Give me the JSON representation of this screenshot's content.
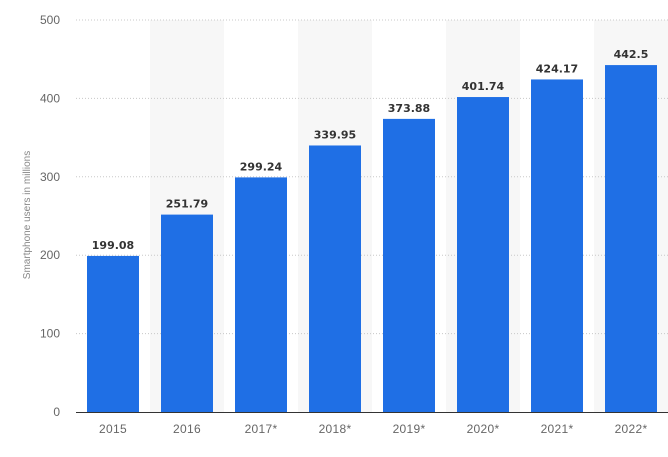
{
  "chart_data": {
    "type": "bar",
    "ylabel": "Smartphone users in millions",
    "xlabel": "",
    "ylim": [
      0,
      500
    ],
    "yticks": [
      0,
      100,
      200,
      300,
      400,
      500
    ],
    "categories": [
      "2015",
      "2016",
      "2017*",
      "2018*",
      "2019*",
      "2020*",
      "2021*",
      "2022*"
    ],
    "values": [
      199.08,
      251.79,
      299.24,
      339.95,
      373.88,
      401.74,
      424.17,
      442.5
    ],
    "value_labels": [
      "199.08",
      "251.79",
      "299.24",
      "339.95",
      "373.88",
      "401.74",
      "424.17",
      "442.5"
    ],
    "grid": true,
    "alternating_column_bands": true,
    "colors": {
      "bar": "#1f6fe5",
      "band": "#f7f7f7",
      "grid": "#c8c8c8",
      "baseline": "#333333"
    }
  }
}
